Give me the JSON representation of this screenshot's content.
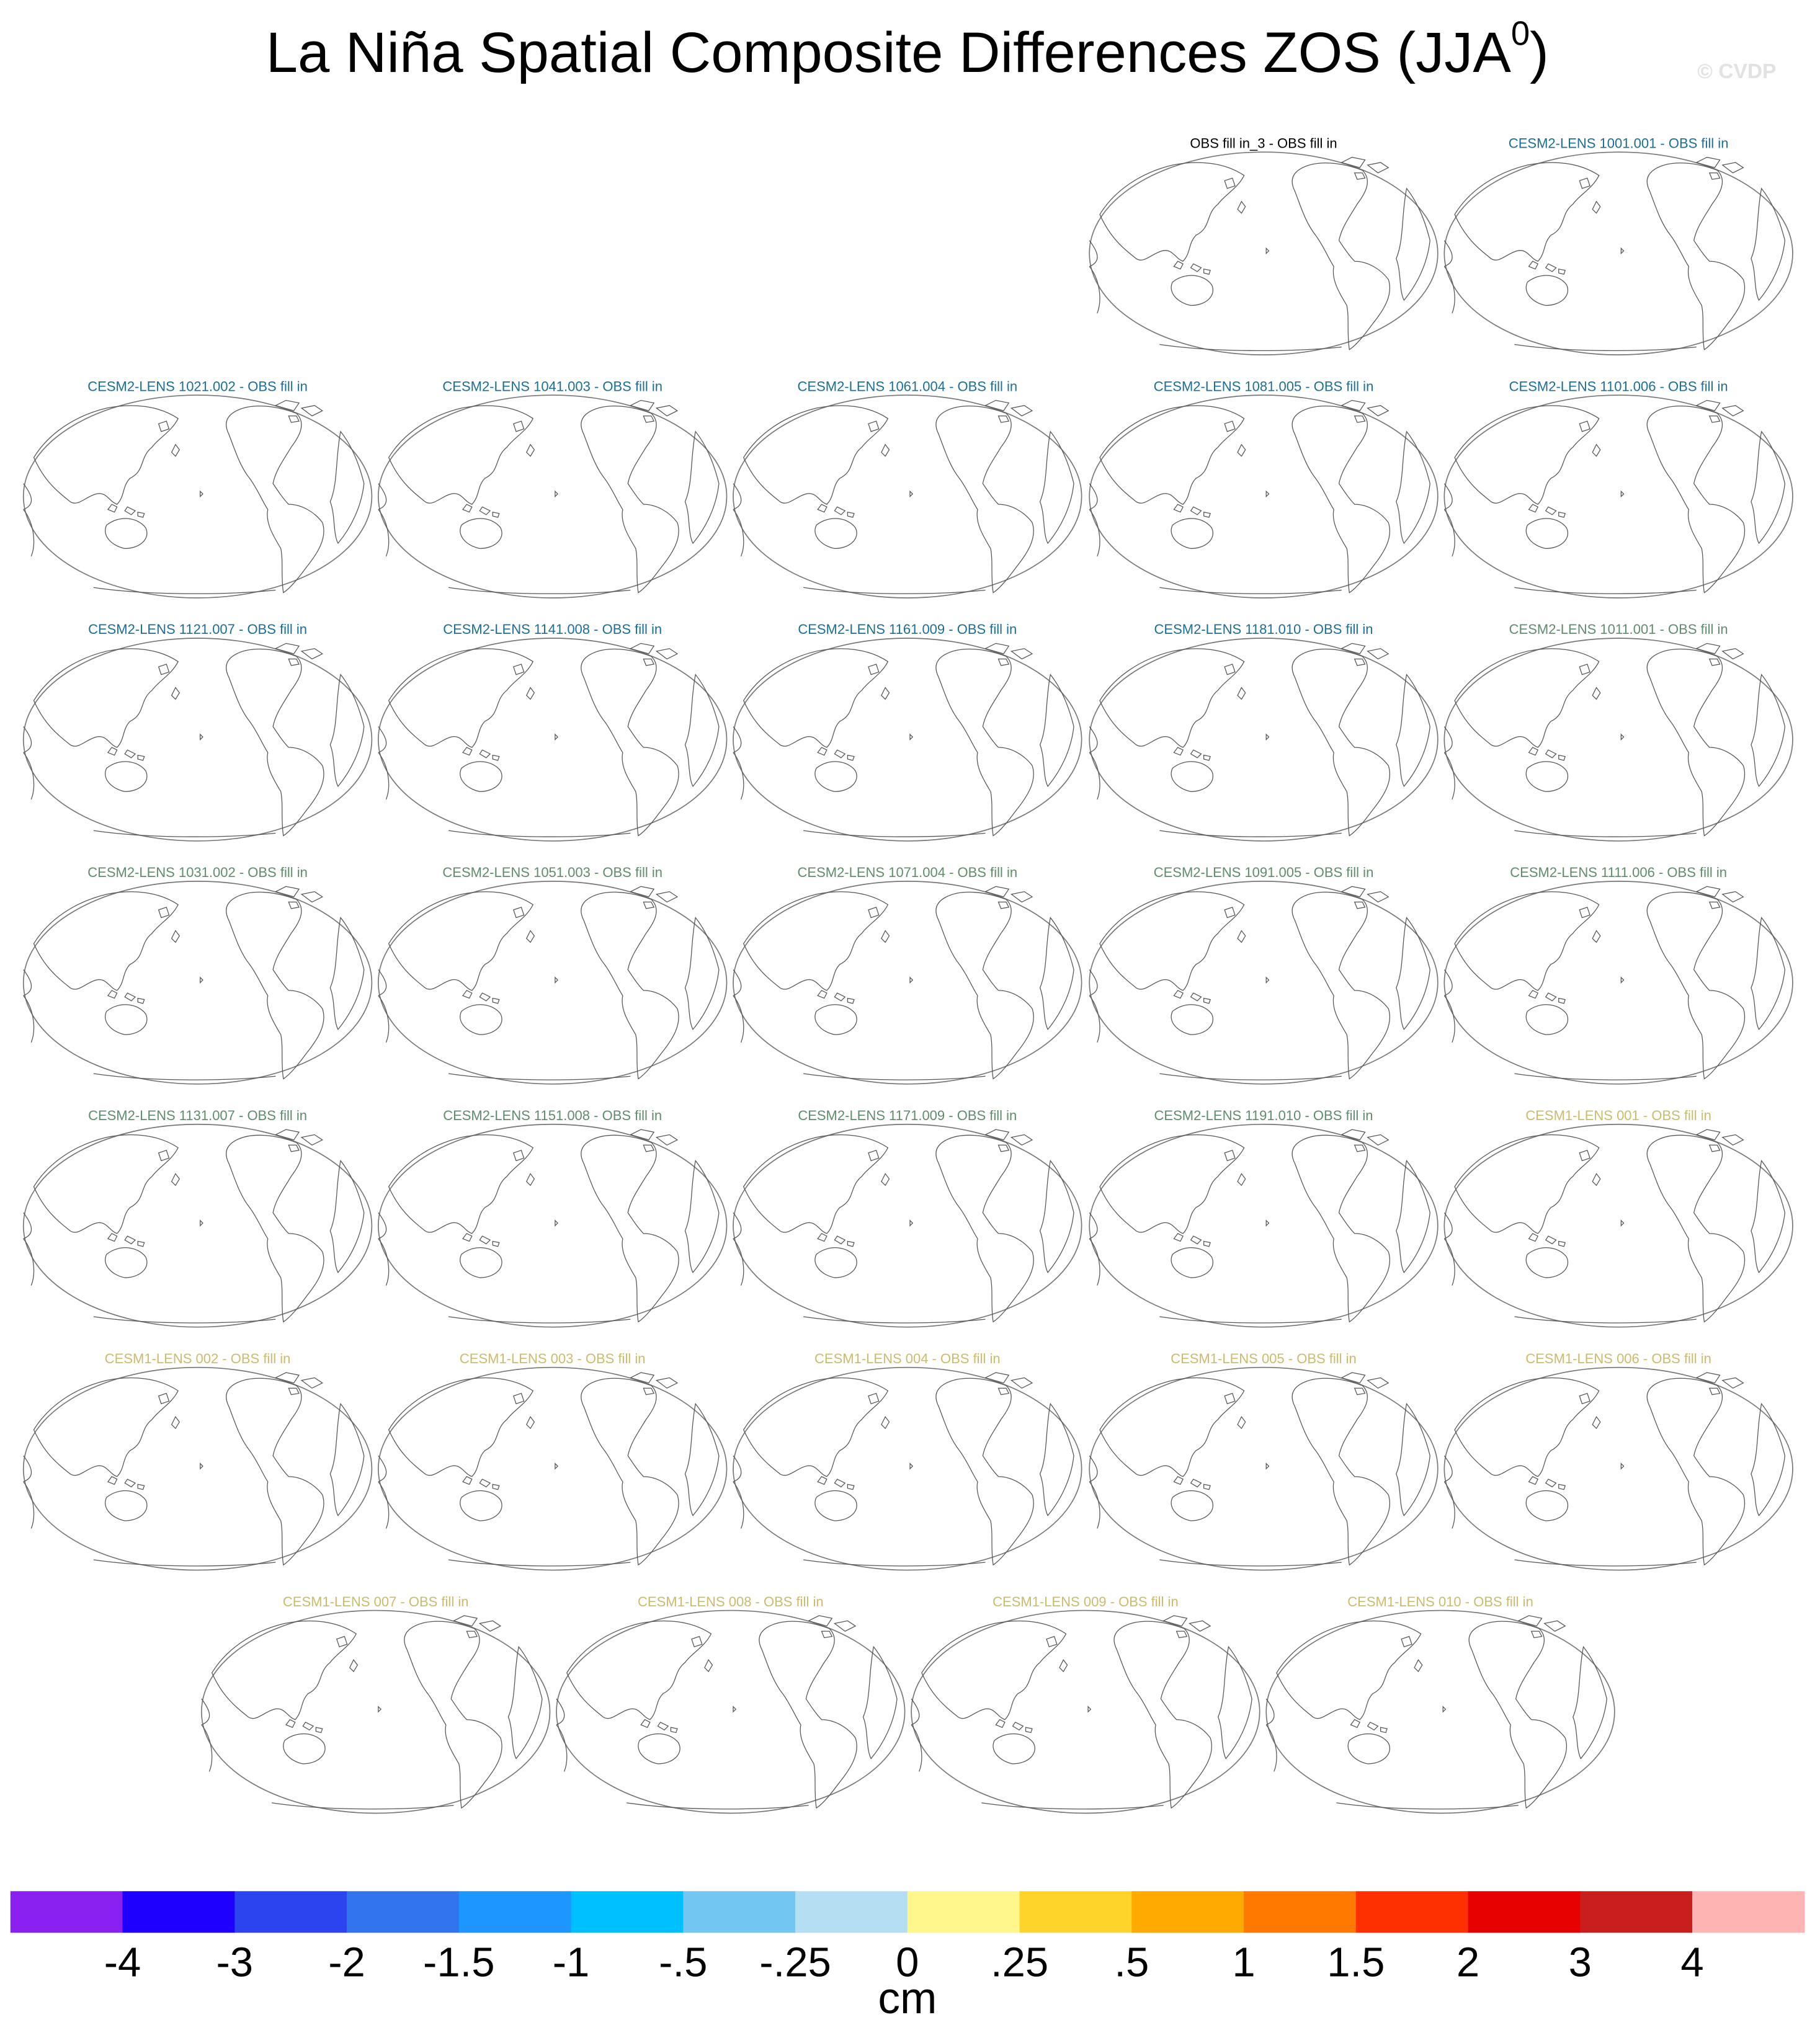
{
  "title": "La Niña Spatial Composite Differences ZOS (JJA",
  "title_superscript": "0",
  "title_end": ")",
  "copyright": "© CVDP",
  "panel_rows": [
    [
      {
        "title": "OBS fill in_3 - OBS fill in",
        "color": "#000000"
      },
      {
        "title": "CESM2-LENS 1001.001 - OBS fill in",
        "color": "#1b6e96"
      }
    ],
    [
      {
        "title": "CESM2-LENS 1021.002 - OBS fill in",
        "color": "#1b6e96"
      },
      {
        "title": "CESM2-LENS 1041.003 - OBS fill in",
        "color": "#1b6e96"
      },
      {
        "title": "CESM2-LENS 1061.004 - OBS fill in",
        "color": "#1b6e96"
      },
      {
        "title": "CESM2-LENS 1081.005 - OBS fill in",
        "color": "#1b6e96"
      },
      {
        "title": "CESM2-LENS 1101.006 - OBS fill in",
        "color": "#1b6e96"
      }
    ],
    [
      {
        "title": "CESM2-LENS 1121.007 - OBS fill in",
        "color": "#1b6e96"
      },
      {
        "title": "CESM2-LENS 1141.008 - OBS fill in",
        "color": "#1b6e96"
      },
      {
        "title": "CESM2-LENS 1161.009 - OBS fill in",
        "color": "#1b6e96"
      },
      {
        "title": "CESM2-LENS 1181.010 - OBS fill in",
        "color": "#1b6e96"
      },
      {
        "title": "CESM2-LENS 1011.001 - OBS fill in",
        "color": "#5f8c6a"
      }
    ],
    [
      {
        "title": "CESM2-LENS 1031.002 - OBS fill in",
        "color": "#5f8c6a"
      },
      {
        "title": "CESM2-LENS 1051.003 - OBS fill in",
        "color": "#5f8c6a"
      },
      {
        "title": "CESM2-LENS 1071.004 - OBS fill in",
        "color": "#5f8c6a"
      },
      {
        "title": "CESM2-LENS 1091.005 - OBS fill in",
        "color": "#5f8c6a"
      },
      {
        "title": "CESM2-LENS 1111.006 - OBS fill in",
        "color": "#5f8c6a"
      }
    ],
    [
      {
        "title": "CESM2-LENS 1131.007 - OBS fill in",
        "color": "#5f8c6a"
      },
      {
        "title": "CESM2-LENS 1151.008 - OBS fill in",
        "color": "#5f8c6a"
      },
      {
        "title": "CESM2-LENS 1171.009 - OBS fill in",
        "color": "#5f8c6a"
      },
      {
        "title": "CESM2-LENS 1191.010 - OBS fill in",
        "color": "#5f8c6a"
      },
      {
        "title": "CESM1-LENS 001 - OBS fill in",
        "color": "#cbbb6c"
      }
    ],
    [
      {
        "title": "CESM1-LENS 002 - OBS fill in",
        "color": "#cbbb6c"
      },
      {
        "title": "CESM1-LENS 003 - OBS fill in",
        "color": "#cbbb6c"
      },
      {
        "title": "CESM1-LENS 004 - OBS fill in",
        "color": "#cbbb6c"
      },
      {
        "title": "CESM1-LENS 005 - OBS fill in",
        "color": "#cbbb6c"
      },
      {
        "title": "CESM1-LENS 006 - OBS fill in",
        "color": "#cbbb6c"
      }
    ],
    [
      {
        "title": "CESM1-LENS 007 - OBS fill in",
        "color": "#cbbb6c"
      },
      {
        "title": "CESM1-LENS 008 - OBS fill in",
        "color": "#cbbb6c"
      },
      {
        "title": "CESM1-LENS 009 - OBS fill in",
        "color": "#cbbb6c"
      },
      {
        "title": "CESM1-LENS 010 - OBS fill in",
        "color": "#cbbb6c"
      }
    ]
  ],
  "colorbar": {
    "colors": [
      "#8a20f0",
      "#1e00ff",
      "#2c44f0",
      "#3274ee",
      "#1e96ff",
      "#00c0ff",
      "#72c6f2",
      "#b4dff2",
      "#fff68c",
      "#ffd42a",
      "#ffaa00",
      "#ff7800",
      "#ff3000",
      "#e60000",
      "#c81e1e",
      "#ffb4b4"
    ],
    "labels": [
      "-4",
      "-3",
      "-2",
      "-1.5",
      "-1",
      "-.5",
      "-.25",
      "0",
      ".25",
      ".5",
      "1",
      "1.5",
      "2",
      "3",
      "4"
    ],
    "units": "cm"
  }
}
